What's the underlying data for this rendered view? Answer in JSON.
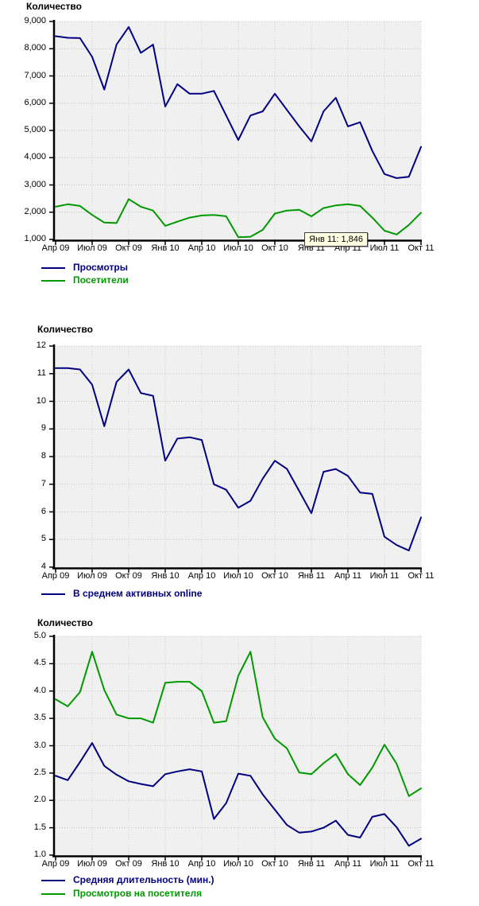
{
  "page": {
    "background": "#ffffff",
    "plot_background": "#f0f0f0"
  },
  "chart_data": [
    {
      "type": "line",
      "title": "Количество",
      "ylim": [
        1000,
        9000
      ],
      "grid": true,
      "legend_position": "bottom-left",
      "y_tick_labels": [
        "9,000",
        "8,000",
        "7,000",
        "6,000",
        "5,000",
        "4,000",
        "3,000",
        "2,000",
        "1,000"
      ],
      "x_tick_labels": [
        "Апр 09",
        "Июл 09",
        "Окт 09",
        "Янв 10",
        "Апр 10",
        "Июл 10",
        "Окт 10",
        "Янв 11",
        "Апр 11",
        "Июл 11",
        "Окт 11"
      ],
      "points_per_tick_interval": 3,
      "series": [
        {
          "name": "Просмотры",
          "color": "#000080",
          "values": [
            8460,
            8400,
            8390,
            7700,
            6500,
            8150,
            8800,
            7850,
            8150,
            5880,
            6700,
            6350,
            6350,
            6450,
            5550,
            4650,
            5550,
            5700,
            6350,
            5750,
            5150,
            4600,
            5700,
            6200,
            5150,
            5300,
            4250,
            3400,
            3250,
            3300,
            4400
          ]
        },
        {
          "name": "Посетители",
          "color": "#009900",
          "values": [
            2200,
            2290,
            2230,
            1900,
            1620,
            1600,
            2480,
            2200,
            2060,
            1500,
            1650,
            1800,
            1880,
            1900,
            1850,
            1080,
            1100,
            1350,
            1950,
            2060,
            2090,
            1846,
            2150,
            2250,
            2290,
            2230,
            1800,
            1320,
            1180,
            1530,
            1980
          ]
        }
      ],
      "tooltip": {
        "text": "Янв 11: 1,846"
      }
    },
    {
      "type": "line",
      "title": "Количество",
      "ylim": [
        4,
        12
      ],
      "grid": true,
      "legend_position": "bottom-left",
      "y_tick_labels": [
        "12",
        "11",
        "10",
        "9",
        "8",
        "7",
        "6",
        "5",
        "4"
      ],
      "x_tick_labels": [
        "Апр 09",
        "Июл 09",
        "Окт 09",
        "Янв 10",
        "Апр 10",
        "Июл 10",
        "Окт 10",
        "Янв 11",
        "Апр 11",
        "Июл 11",
        "Окт 11"
      ],
      "points_per_tick_interval": 3,
      "series": [
        {
          "name": "В среднем активных online",
          "color": "#000080",
          "values": [
            11.2,
            11.2,
            11.15,
            10.6,
            9.1,
            10.7,
            11.15,
            10.3,
            10.2,
            7.85,
            8.65,
            8.7,
            8.6,
            7.0,
            6.8,
            6.15,
            6.4,
            7.2,
            7.85,
            7.55,
            6.75,
            5.95,
            7.45,
            7.55,
            7.3,
            6.7,
            6.65,
            5.1,
            4.8,
            4.6,
            5.8
          ]
        }
      ]
    },
    {
      "type": "line",
      "title": "Количество",
      "ylim": [
        1,
        5
      ],
      "grid": true,
      "legend_position": "bottom-left",
      "y_tick_labels": [
        "5.0",
        "4.5",
        "4.0",
        "3.5",
        "3.0",
        "2.5",
        "2.0",
        "1.5",
        "1.0"
      ],
      "x_tick_labels": [
        "Апр 09",
        "Июл 09",
        "Окт 09",
        "Янв 10",
        "Апр 10",
        "Июл 10",
        "Окт 10",
        "Янв 11",
        "Апр 11",
        "Июл 11",
        "Окт 11"
      ],
      "points_per_tick_interval": 3,
      "series": [
        {
          "name": "Средняя длительность (мин.)",
          "color": "#000080",
          "values": [
            2.45,
            2.37,
            2.7,
            3.05,
            2.63,
            2.47,
            2.35,
            2.3,
            2.26,
            2.48,
            2.53,
            2.57,
            2.53,
            1.66,
            1.95,
            2.49,
            2.45,
            2.11,
            1.83,
            1.55,
            1.41,
            1.43,
            1.5,
            1.63,
            1.37,
            1.32,
            1.7,
            1.75,
            1.51,
            1.17,
            1.3
          ]
        },
        {
          "name": "Просмотров на посетителя",
          "color": "#009900",
          "values": [
            3.85,
            3.72,
            3.98,
            4.72,
            4.02,
            3.57,
            3.5,
            3.5,
            3.42,
            4.15,
            4.17,
            4.17,
            4.0,
            3.42,
            3.45,
            4.28,
            4.72,
            3.52,
            3.13,
            2.95,
            2.51,
            2.48,
            2.68,
            2.85,
            2.48,
            2.28,
            2.6,
            3.02,
            2.67,
            2.08,
            2.22
          ]
        }
      ]
    }
  ]
}
